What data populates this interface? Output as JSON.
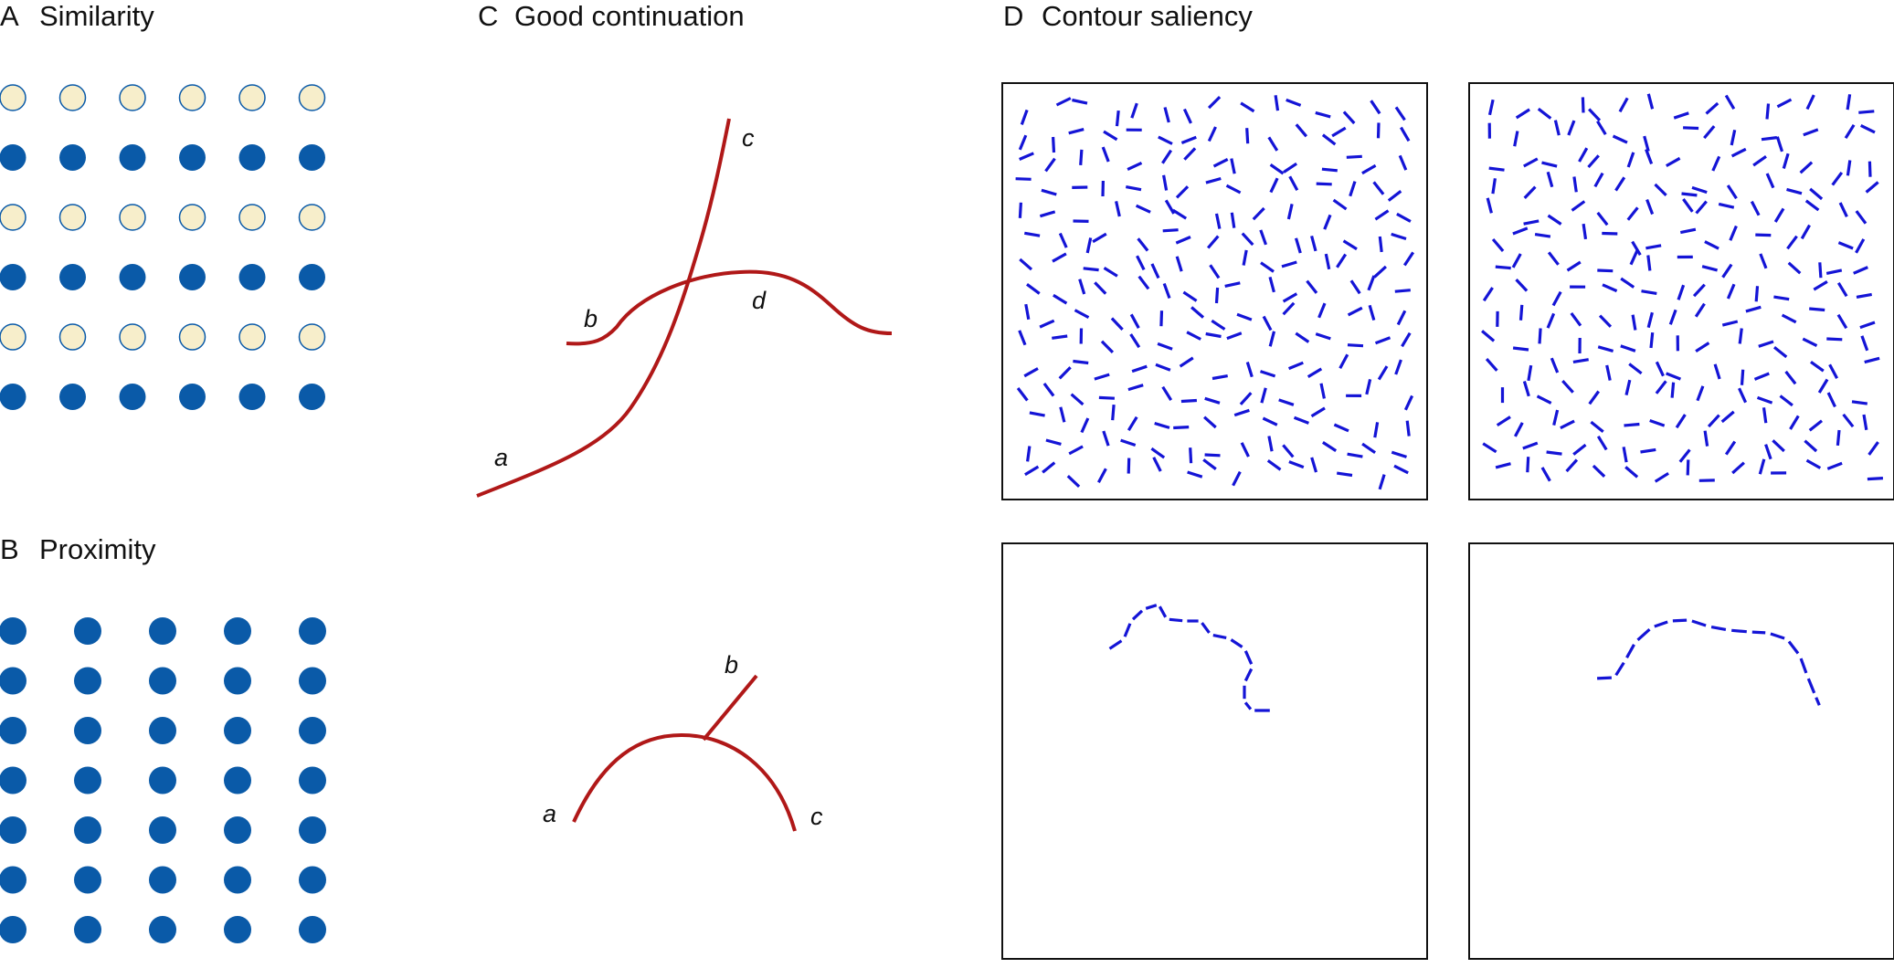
{
  "panels": {
    "A": {
      "letter": "A",
      "title": "Similarity"
    },
    "B": {
      "letter": "B",
      "title": "Proximity"
    },
    "C": {
      "letter": "C",
      "title": "Good continuation",
      "top_labels": [
        "a",
        "b",
        "c",
        "d"
      ],
      "bottom_labels": [
        "a",
        "b",
        "c"
      ]
    },
    "D": {
      "letter": "D",
      "title": "Contour saliency"
    }
  },
  "similarity_grid": {
    "rows": [
      "open",
      "filled",
      "open",
      "filled",
      "open",
      "filled"
    ],
    "columns": 6
  },
  "proximity_grid": {
    "rows": 7,
    "columns": 5
  },
  "colors": {
    "dot_blue": "#0a5aa8",
    "dot_cream": "#f7eecb",
    "curve_red": "#b01818",
    "dash_blue": "#1414d6",
    "frame": "#111111"
  }
}
